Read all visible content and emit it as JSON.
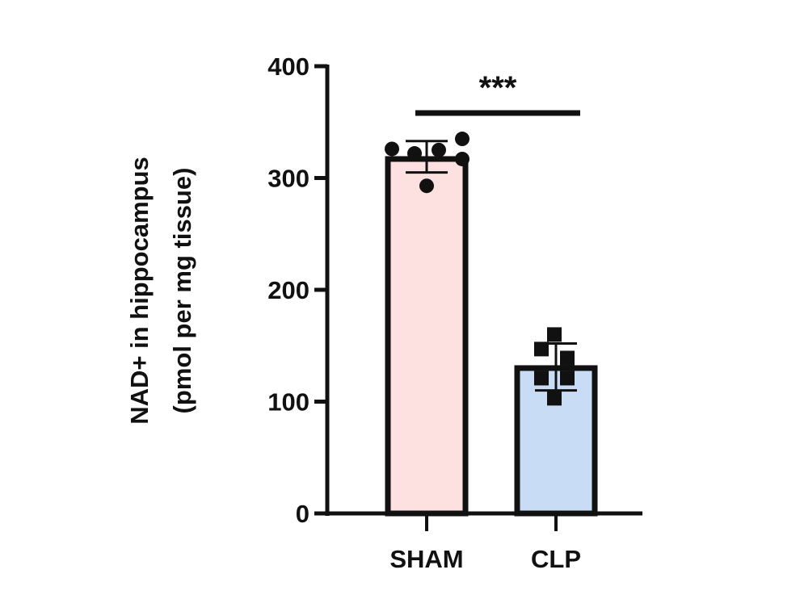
{
  "chart_data": {
    "type": "bar",
    "title": "",
    "xlabel": "",
    "ylabel_line1": "NAD+ in hippocampus",
    "ylabel_line2": "(pmol per mg tissue)",
    "ylabel": "NAD+ in hippocampus (pmol per mg tissue)",
    "ylim": [
      0,
      400
    ],
    "yticks": [
      0,
      100,
      200,
      300,
      400
    ],
    "ytick_labels": [
      "0",
      "100",
      "200",
      "300",
      "400"
    ],
    "grid": false,
    "legend": null,
    "categories": [
      "SHAM",
      "CLP"
    ],
    "values": [
      317,
      130
    ],
    "error": [
      {
        "upper": 333,
        "lower": 305
      },
      {
        "upper": 152,
        "lower": 110
      }
    ],
    "colors": [
      "#fde0e0",
      "#c9dcf5"
    ],
    "points": [
      {
        "category": "SHAM",
        "marker": "circle",
        "values": [
          326,
          322,
          325,
          335,
          317,
          293
        ]
      },
      {
        "category": "CLP",
        "marker": "square",
        "values": [
          160,
          147,
          139,
          121,
          121,
          103
        ]
      }
    ],
    "annotations": [
      {
        "type": "significance",
        "text": "***",
        "between": [
          "SHAM",
          "CLP"
        ]
      }
    ]
  }
}
